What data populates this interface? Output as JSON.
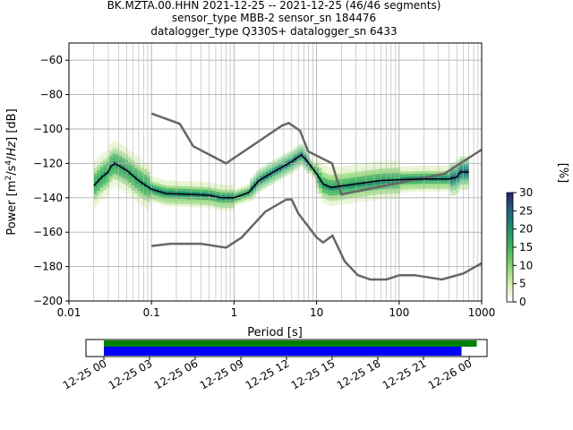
{
  "title": {
    "line1": "BK.MZTA.00.HHN   2021-12-25 -- 2021-12-25  (46/46 segments)",
    "line2": "sensor_type MBB-2 sensor_sn 184476",
    "line3": "datalogger_type Q330S+ datalogger_sn 6433"
  },
  "chart_data": {
    "type": "heatmap",
    "xlabel": "Period [s]",
    "ylabel": "Power [m²/s⁴/Hz] [dB]",
    "xscale": "log",
    "xlim": [
      0.01,
      1000
    ],
    "ylim": [
      -200,
      -50
    ],
    "x_ticks": [
      {
        "value": 0.01,
        "label": "0.01"
      },
      {
        "value": 0.1,
        "label": "0.1"
      },
      {
        "value": 1,
        "label": "1"
      },
      {
        "value": 10,
        "label": "10"
      },
      {
        "value": 100,
        "label": "100"
      },
      {
        "value": 1000,
        "label": "1000"
      }
    ],
    "y_ticks": [
      {
        "value": -60,
        "label": "−60"
      },
      {
        "value": -80,
        "label": "−80"
      },
      {
        "value": -100,
        "label": "−100"
      },
      {
        "value": -120,
        "label": "−120"
      },
      {
        "value": -140,
        "label": "−140"
      },
      {
        "value": -160,
        "label": "−160"
      },
      {
        "value": -180,
        "label": "−180"
      },
      {
        "value": -200,
        "label": "−200"
      }
    ],
    "grid": true,
    "colorbar": {
      "label": "[%]",
      "range": [
        0,
        30
      ],
      "ticks": [
        {
          "value": 0,
          "label": "0"
        },
        {
          "value": 5,
          "label": "5"
        },
        {
          "value": 10,
          "label": "10"
        },
        {
          "value": 15,
          "label": "15"
        },
        {
          "value": 20,
          "label": "20"
        },
        {
          "value": 25,
          "label": "25"
        },
        {
          "value": 30,
          "label": "30"
        }
      ],
      "colors": [
        "#ffffff",
        "#d6edb0",
        "#8ad36a",
        "#3cb35a",
        "#1e8f6f",
        "#20637d",
        "#2a2070"
      ]
    },
    "noise_model_high": [
      [
        0.1,
        -91
      ],
      [
        0.22,
        -97
      ],
      [
        0.32,
        -110
      ],
      [
        0.8,
        -120
      ],
      [
        3.8,
        -98
      ],
      [
        4.6,
        -96.5
      ],
      [
        6.3,
        -101
      ],
      [
        7.9,
        -113
      ],
      [
        15.4,
        -120
      ],
      [
        20,
        -138
      ],
      [
        354,
        -126
      ],
      [
        1000,
        -112
      ]
    ],
    "noise_model_low": [
      [
        0.1,
        -168
      ],
      [
        0.17,
        -166.7
      ],
      [
        0.4,
        -166.7
      ],
      [
        0.8,
        -169
      ],
      [
        1.24,
        -163
      ],
      [
        2.4,
        -148
      ],
      [
        4.3,
        -141
      ],
      [
        5,
        -141
      ],
      [
        6,
        -149
      ],
      [
        10,
        -163
      ],
      [
        12,
        -166
      ],
      [
        15.6,
        -162
      ],
      [
        21.9,
        -177
      ],
      [
        31.6,
        -185
      ],
      [
        45,
        -187.5
      ],
      [
        70,
        -187.5
      ],
      [
        101,
        -185
      ],
      [
        154,
        -185
      ],
      [
        328,
        -187.5
      ],
      [
        600,
        -184
      ],
      [
        1000,
        -178
      ]
    ],
    "mean_curve": [
      [
        0.02,
        -133
      ],
      [
        0.025,
        -128
      ],
      [
        0.03,
        -125
      ],
      [
        0.032,
        -122
      ],
      [
        0.036,
        -120
      ],
      [
        0.05,
        -124
      ],
      [
        0.07,
        -130
      ],
      [
        0.1,
        -135
      ],
      [
        0.15,
        -137.5
      ],
      [
        0.3,
        -138
      ],
      [
        0.5,
        -138.5
      ],
      [
        0.7,
        -140
      ],
      [
        1,
        -140
      ],
      [
        1.5,
        -137
      ],
      [
        2,
        -130
      ],
      [
        3,
        -125
      ],
      [
        5,
        -119
      ],
      [
        6.5,
        -115
      ],
      [
        7.5,
        -118
      ],
      [
        10,
        -126
      ],
      [
        12,
        -132
      ],
      [
        15,
        -134
      ],
      [
        30,
        -132
      ],
      [
        60,
        -130
      ],
      [
        100,
        -129.5
      ],
      [
        200,
        -129
      ],
      [
        400,
        -129
      ],
      [
        500,
        -128
      ],
      [
        550,
        -125
      ],
      [
        700,
        -125
      ]
    ],
    "density_band": {
      "period_range": [
        0.02,
        700
      ],
      "spread_db": 12
    },
    "time_axis": {
      "ticks": [
        "12-25 00",
        "12-25 03",
        "12-25 06",
        "12-25 09",
        "12-25 12",
        "12-25 15",
        "12-25 18",
        "12-25 21",
        "12-26 00"
      ],
      "data_coverage": {
        "color": "#008000",
        "start_hour": 0,
        "end_hour": 24.5
      },
      "psd_coverage": {
        "color": "#0000ff",
        "start_hour": 0,
        "end_hour": 23.5
      }
    }
  }
}
